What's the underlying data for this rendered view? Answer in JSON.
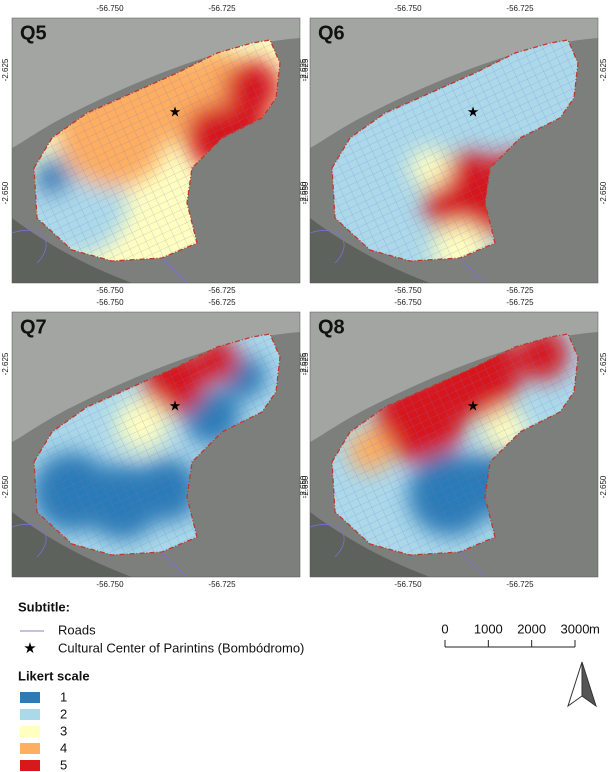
{
  "panels": [
    {
      "label": "Q5"
    },
    {
      "label": "Q6"
    },
    {
      "label": "Q7"
    },
    {
      "label": "Q8"
    }
  ],
  "axes": {
    "x_labels": [
      "-56.750",
      "-56.725"
    ],
    "y_labels": [
      "-2.625",
      "-2.650"
    ]
  },
  "legend": {
    "title": "Subtitle:",
    "items": [
      {
        "label": "Roads"
      },
      {
        "label": "Cultural Center of Parintins (Bombódromo)"
      }
    ],
    "scale_title": "Likert scale",
    "levels": [
      {
        "label": "1",
        "color": "#2c7bb6"
      },
      {
        "label": "2",
        "color": "#abd9e9"
      },
      {
        "label": "3",
        "color": "#ffffbf"
      },
      {
        "label": "4",
        "color": "#fdae61"
      },
      {
        "label": "5",
        "color": "#d7191c"
      }
    ]
  },
  "scale_bar": {
    "ticks": [
      0,
      1000,
      2000,
      3000
    ],
    "unit": "m"
  }
}
